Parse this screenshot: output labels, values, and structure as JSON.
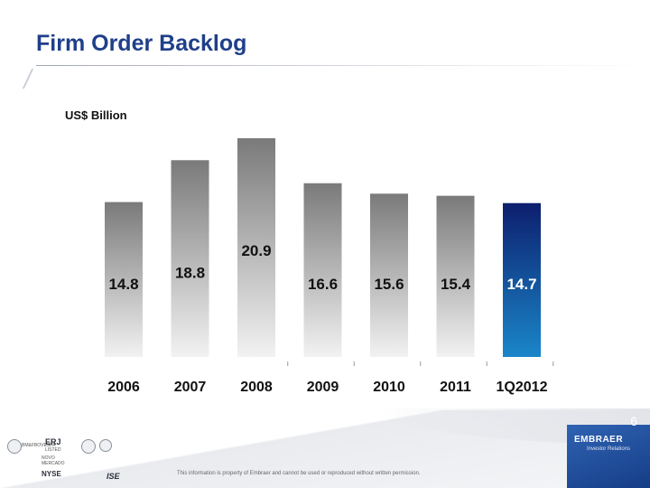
{
  "page": {
    "title": "Firm Order Backlog",
    "unit_label": "US$ Billion",
    "page_number": "6",
    "disclaimer": "This information is property of Embraer and cannot be used or reproduced without written permission.",
    "brand": "EMBRAER",
    "brand_sub": "Investor Relations",
    "logos": {
      "bovespa_line1": "BM&FBOVESPA",
      "erj": "ERJ",
      "listed": "LISTED",
      "novo_mercado": "NOVO MERCADO",
      "nyse": "NYSE",
      "ise": "ISE"
    }
  },
  "chart_data": {
    "type": "bar",
    "title": "Firm Order Backlog",
    "ylabel": "US$ Billion",
    "xlabel": "",
    "categories": [
      "2006",
      "2007",
      "2008",
      "2009",
      "2010",
      "2011",
      "1Q2012"
    ],
    "values": [
      14.8,
      18.8,
      20.9,
      16.6,
      15.6,
      15.4,
      14.7
    ],
    "value_labels": [
      "14.8",
      "18.8",
      "20.9",
      "16.6",
      "15.6",
      "15.4",
      "14.7"
    ],
    "highlight_index": 6,
    "colors": {
      "bar_top": "#7a7a7a",
      "bar_bottom": "#f2f2f2",
      "highlight_top": "#0d1f6e",
      "highlight_bottom": "#1a86c9",
      "label": "#111111",
      "highlight_label": "#ffffff"
    },
    "ylim": [
      0,
      21.5
    ],
    "grid": false
  }
}
